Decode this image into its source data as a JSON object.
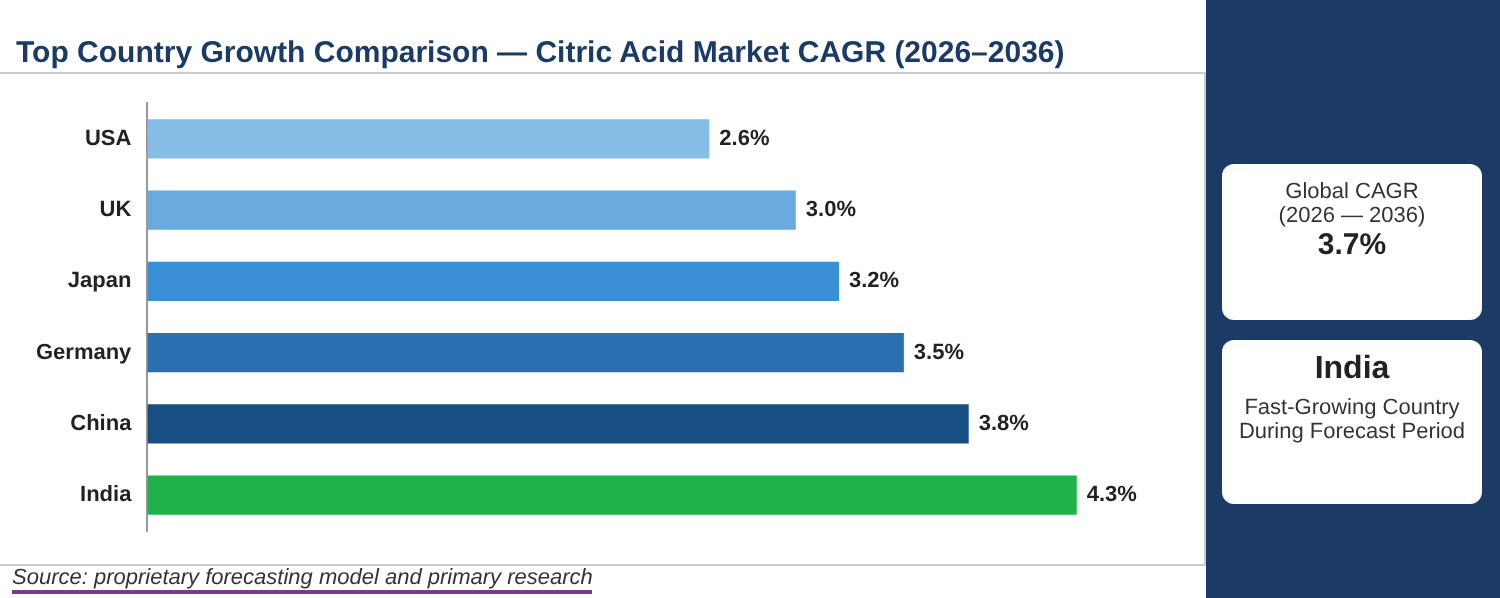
{
  "chart_data": {
    "type": "bar",
    "orientation": "horizontal",
    "title": "Top Country Growth Comparison — Citric Acid Market CAGR (2026–2036)",
    "categories": [
      "USA",
      "UK",
      "Japan",
      "Germany",
      "China",
      "India"
    ],
    "values": [
      2.6,
      3.0,
      3.2,
      3.5,
      3.8,
      4.3
    ],
    "colors": [
      "#86bde6",
      "#6aabdf",
      "#3b8fd4",
      "#2a70b0",
      "#174f83",
      "#1fb14a"
    ],
    "value_labels": [
      "2.6%",
      "3.0%",
      "3.2%",
      "3.5%",
      "3.8%",
      "4.3%"
    ],
    "grid": false,
    "legend": false,
    "annotations": [
      "Source: proprietary forecasting model and primary research",
      "Global CAGR",
      "(2026 — 2036)",
      "3.7%",
      "India",
      "Fast-Growing Country",
      "During Forecast Period"
    ]
  }
}
